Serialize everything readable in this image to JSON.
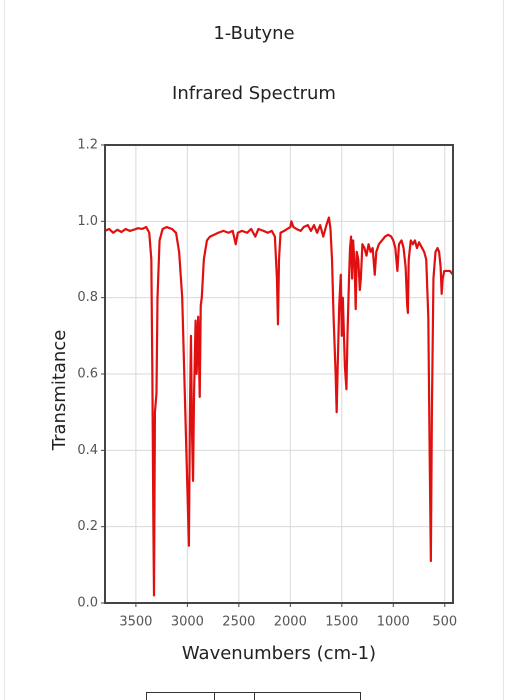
{
  "chart_data": {
    "type": "line",
    "title": "1-Butyne",
    "subtitle": "Infrared Spectrum",
    "x_label": "Wavenumbers (cm-1)",
    "y_label": "Transmitance",
    "color": "#e01010",
    "grid": true,
    "xlim": [
      3800,
      420
    ],
    "xticks": [
      3500,
      3000,
      2500,
      2000,
      1500,
      1000,
      500
    ],
    "ylim": [
      0,
      1.2
    ],
    "yticks": [
      {
        "value": 0,
        "label": "0.0"
      },
      0.2,
      0.4,
      0.6,
      0.8,
      {
        "value": 1,
        "label": "1.0"
      },
      {
        "value": 1.2,
        "label": "1.2"
      }
    ],
    "x": [
      3800,
      3760,
      3720,
      3680,
      3640,
      3600,
      3560,
      3520,
      3480,
      3440,
      3400,
      3370,
      3350,
      3340,
      3330,
      3324,
      3315,
      3300,
      3290,
      3270,
      3240,
      3200,
      3150,
      3110,
      3080,
      3050,
      3020,
      3000,
      2985,
      2975,
      2965,
      2955,
      2945,
      2935,
      2920,
      2910,
      2895,
      2880,
      2870,
      2860,
      2840,
      2810,
      2780,
      2740,
      2700,
      2650,
      2600,
      2560,
      2530,
      2510,
      2470,
      2420,
      2380,
      2340,
      2310,
      2260,
      2220,
      2180,
      2150,
      2130,
      2120,
      2110,
      2095,
      2060,
      2030,
      2000,
      1990,
      1970,
      1940,
      1900,
      1870,
      1830,
      1800,
      1770,
      1740,
      1710,
      1680,
      1650,
      1625,
      1610,
      1595,
      1580,
      1560,
      1550,
      1540,
      1525,
      1510,
      1500,
      1490,
      1470,
      1455,
      1445,
      1430,
      1420,
      1410,
      1400,
      1390,
      1375,
      1365,
      1355,
      1340,
      1325,
      1315,
      1300,
      1280,
      1260,
      1240,
      1220,
      1200,
      1180,
      1165,
      1140,
      1110,
      1080,
      1050,
      1020,
      1000,
      980,
      960,
      945,
      920,
      900,
      880,
      865,
      858,
      850,
      830,
      810,
      790,
      770,
      750,
      720,
      700,
      680,
      660,
      645,
      635,
      625,
      610,
      590,
      570,
      555,
      540,
      530,
      520,
      505,
      480,
      450,
      420
    ],
    "values": [
      0.975,
      0.98,
      0.97,
      0.978,
      0.972,
      0.98,
      0.975,
      0.978,
      0.982,
      0.98,
      0.985,
      0.97,
      0.9,
      0.6,
      0.2,
      0.02,
      0.5,
      0.55,
      0.8,
      0.95,
      0.98,
      0.985,
      0.98,
      0.97,
      0.92,
      0.8,
      0.5,
      0.3,
      0.15,
      0.5,
      0.7,
      0.45,
      0.32,
      0.55,
      0.74,
      0.6,
      0.75,
      0.54,
      0.78,
      0.8,
      0.9,
      0.95,
      0.96,
      0.965,
      0.97,
      0.975,
      0.97,
      0.975,
      0.94,
      0.97,
      0.975,
      0.97,
      0.98,
      0.96,
      0.98,
      0.975,
      0.97,
      0.975,
      0.96,
      0.85,
      0.73,
      0.9,
      0.97,
      0.975,
      0.98,
      0.985,
      1.0,
      0.985,
      0.98,
      0.975,
      0.985,
      0.99,
      0.975,
      0.99,
      0.97,
      0.99,
      0.96,
      0.99,
      1.01,
      0.98,
      0.9,
      0.75,
      0.6,
      0.5,
      0.62,
      0.78,
      0.86,
      0.7,
      0.8,
      0.62,
      0.56,
      0.7,
      0.85,
      0.93,
      0.96,
      0.85,
      0.95,
      0.88,
      0.77,
      0.92,
      0.9,
      0.82,
      0.85,
      0.94,
      0.93,
      0.91,
      0.94,
      0.92,
      0.93,
      0.86,
      0.92,
      0.94,
      0.95,
      0.96,
      0.965,
      0.96,
      0.95,
      0.93,
      0.87,
      0.94,
      0.95,
      0.93,
      0.88,
      0.78,
      0.76,
      0.9,
      0.95,
      0.94,
      0.95,
      0.93,
      0.945,
      0.93,
      0.92,
      0.9,
      0.75,
      0.35,
      0.11,
      0.5,
      0.85,
      0.92,
      0.93,
      0.92,
      0.88,
      0.81,
      0.85,
      0.87,
      0.87,
      0.87,
      0.86
    ]
  }
}
